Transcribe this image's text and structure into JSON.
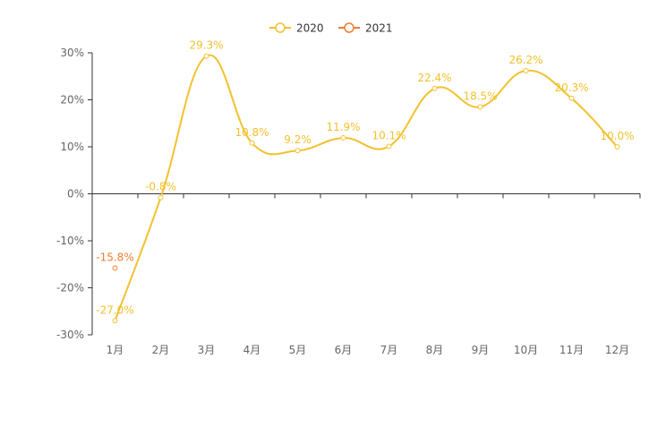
{
  "chart_data": {
    "type": "line",
    "categories": [
      "1月",
      "2月",
      "3月",
      "4月",
      "5月",
      "6月",
      "7月",
      "8月",
      "9月",
      "10月",
      "11月",
      "12月"
    ],
    "series": [
      {
        "name": "2020",
        "color": "#f2c12e",
        "values": [
          -27.0,
          -0.8,
          29.3,
          10.8,
          9.2,
          11.9,
          10.1,
          22.4,
          18.5,
          26.2,
          20.3,
          10.0
        ],
        "labels": [
          "-27.0%",
          "-0.8%",
          "29.3%",
          "10.8%",
          "9.2%",
          "11.9%",
          "10.1%",
          "22.4%",
          "18.5%",
          "26.2%",
          "20.3%",
          "10.0%"
        ]
      },
      {
        "name": "2021",
        "color": "#ed7d31",
        "values": [
          -15.8,
          null,
          null,
          null,
          null,
          null,
          null,
          null,
          null,
          null,
          null,
          null
        ],
        "labels": [
          "-15.8%",
          "",
          "",
          "",
          "",
          "",
          "",
          "",
          "",
          "",
          "",
          ""
        ]
      }
    ],
    "ylim": [
      -30,
      30
    ],
    "yticks": [
      30,
      20,
      10,
      0,
      -10,
      -20,
      -30
    ],
    "ytick_labels": [
      "30%",
      "20%",
      "10%",
      "0%",
      "-10%",
      "-20%",
      "-30%"
    ],
    "legend": "top-center",
    "smooth": true
  }
}
